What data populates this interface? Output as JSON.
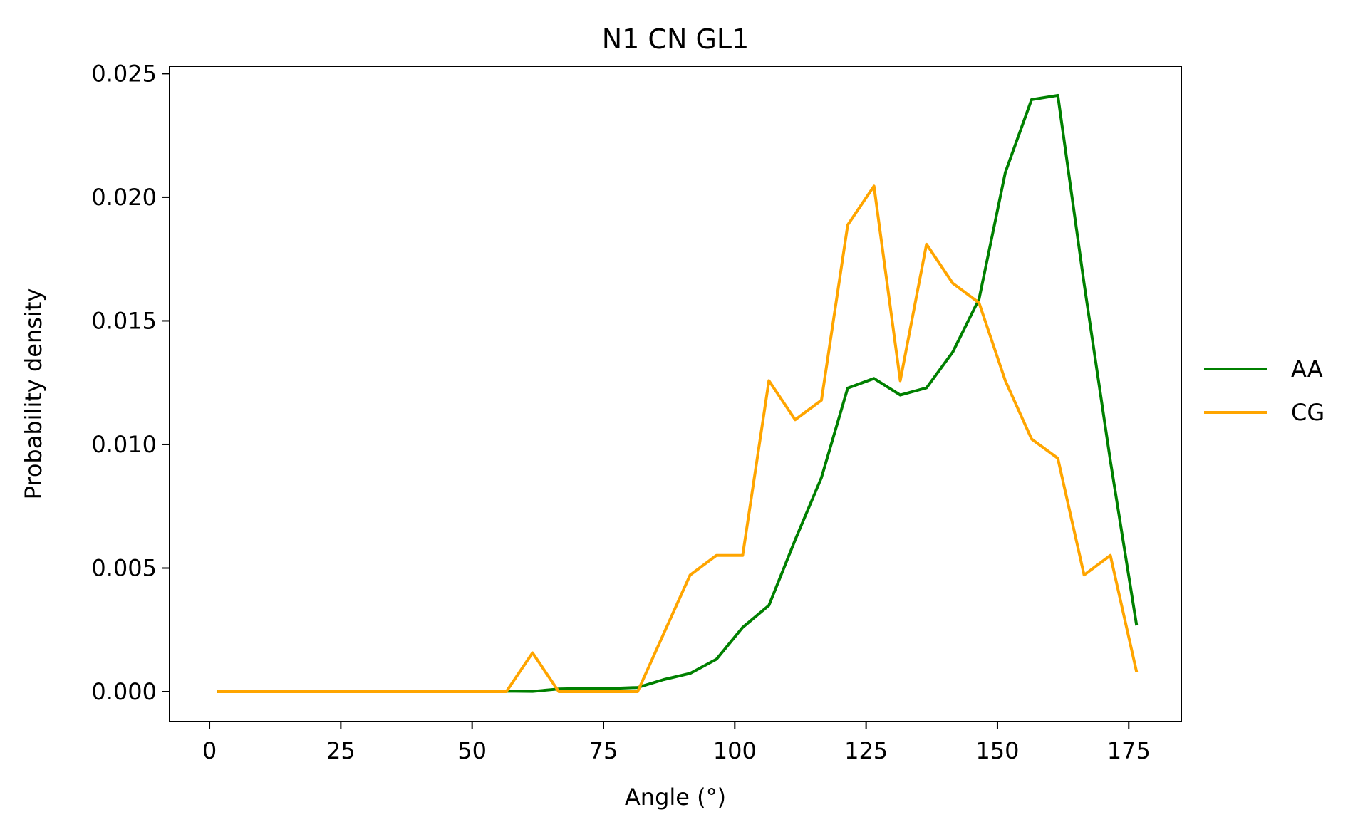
{
  "chart_data": {
    "type": "line",
    "title": "N1 CN GL1",
    "xlabel": "Angle (°)",
    "ylabel": "Probability density",
    "xlim": [
      -7.6,
      185
    ],
    "ylim": [
      -0.00121,
      0.0253
    ],
    "xticks": [
      0,
      25,
      50,
      75,
      100,
      125,
      150,
      175
    ],
    "xtick_labels": [
      "0",
      "25",
      "50",
      "75",
      "100",
      "125",
      "150",
      "175"
    ],
    "yticks": [
      0,
      0.005,
      0.01,
      0.015,
      0.02,
      0.025
    ],
    "ytick_labels": [
      "0.000",
      "0.005",
      "0.010",
      "0.015",
      "0.020",
      "0.025"
    ],
    "grid": false,
    "legend_position": "outside-right",
    "x": [
      1.5,
      6.5,
      11.5,
      16.5,
      21.5,
      26.5,
      31.5,
      36.5,
      41.5,
      46.5,
      51.5,
      56.5,
      61.5,
      66.5,
      71.5,
      76.5,
      81.5,
      86.5,
      91.5,
      96.5,
      101.5,
      106.5,
      111.5,
      116.5,
      121.5,
      126.5,
      131.5,
      136.5,
      141.5,
      146.5,
      151.5,
      156.5,
      161.5,
      166.5,
      171.5,
      176.5
    ],
    "series": [
      {
        "name": "AA",
        "color": "#008000",
        "values": [
          0,
          0,
          0,
          0,
          0,
          0,
          0,
          0,
          0,
          0,
          0,
          2e-05,
          1e-05,
          0.00011,
          0.00013,
          0.00013,
          0.00017,
          0.00049,
          0.00074,
          0.00131,
          0.0026,
          0.00349,
          0.00614,
          0.00866,
          0.01228,
          0.01267,
          0.012,
          0.01229,
          0.01374,
          0.01588,
          0.021,
          0.02395,
          0.02412,
          0.01651,
          0.00934,
          0.00268
        ]
      },
      {
        "name": "CG",
        "color": "#FFA500",
        "values": [
          0,
          0,
          0,
          0,
          0,
          0,
          0,
          0,
          0,
          0,
          0,
          0,
          0.00157,
          0,
          0,
          0,
          0,
          0.00236,
          0.00472,
          0.00551,
          0.00551,
          0.01258,
          0.011,
          0.01179,
          0.01888,
          0.02045,
          0.01258,
          0.0181,
          0.01652,
          0.01573,
          0.01258,
          0.01022,
          0.00944,
          0.00472,
          0.00551,
          0.00079
        ]
      }
    ]
  }
}
